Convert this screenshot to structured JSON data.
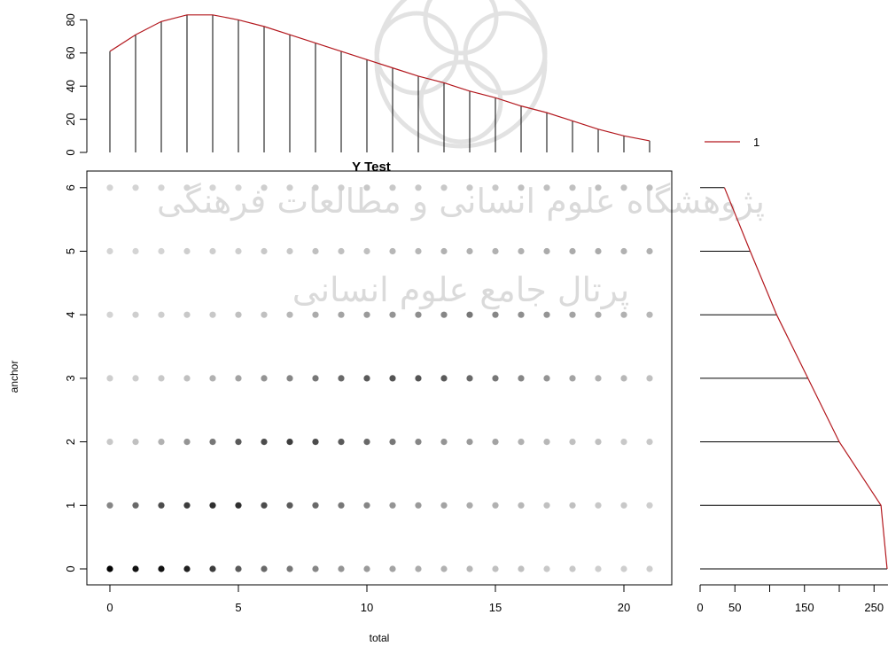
{
  "chart_data": [
    {
      "panel": "joint",
      "type": "scatter",
      "title": "Y Test",
      "xlabel": "total",
      "ylabel": "anchor",
      "xlim": [
        -1,
        22
      ],
      "ylim": [
        -0.2,
        6.2
      ],
      "xticks": [
        "0",
        "5",
        "10",
        "15",
        "20"
      ],
      "yticks": [
        "0",
        "1",
        "2",
        "3",
        "4",
        "5",
        "6"
      ],
      "grid": false,
      "point_style": "grey points; darker shade means higher probability",
      "shade_levels": [
        [
          80,
          75,
          75,
          70,
          60,
          50,
          45,
          40,
          35,
          30,
          28,
          25,
          22,
          20,
          18,
          15,
          15,
          12,
          12,
          10,
          10,
          10
        ],
        [
          35,
          45,
          55,
          60,
          65,
          65,
          55,
          50,
          45,
          40,
          35,
          30,
          28,
          25,
          22,
          20,
          18,
          15,
          15,
          12,
          12,
          10
        ],
        [
          12,
          15,
          20,
          30,
          40,
          50,
          55,
          60,
          55,
          50,
          45,
          40,
          35,
          30,
          28,
          25,
          20,
          18,
          15,
          15,
          12,
          12
        ],
        [
          10,
          10,
          12,
          15,
          20,
          25,
          30,
          35,
          40,
          45,
          50,
          52,
          52,
          50,
          45,
          40,
          35,
          30,
          25,
          20,
          18,
          15
        ],
        [
          8,
          10,
          10,
          12,
          12,
          15,
          15,
          18,
          22,
          25,
          28,
          30,
          32,
          35,
          40,
          35,
          32,
          30,
          25,
          22,
          20,
          18
        ],
        [
          8,
          8,
          8,
          10,
          10,
          10,
          12,
          12,
          15,
          15,
          15,
          18,
          18,
          20,
          20,
          20,
          20,
          22,
          22,
          22,
          20,
          20
        ],
        [
          8,
          8,
          8,
          8,
          8,
          8,
          10,
          10,
          10,
          10,
          12,
          12,
          12,
          12,
          12,
          12,
          15,
          15,
          15,
          15,
          15,
          15
        ]
      ]
    },
    {
      "panel": "top-marginal",
      "type": "bar",
      "x": [
        0,
        1,
        2,
        3,
        4,
        5,
        6,
        7,
        8,
        9,
        10,
        11,
        12,
        13,
        14,
        15,
        16,
        17,
        18,
        19,
        20,
        21
      ],
      "values": [
        61,
        71,
        79,
        83,
        83,
        80,
        76,
        71,
        66,
        61,
        56,
        51,
        46,
        42,
        37,
        33,
        28,
        24,
        19,
        14,
        10,
        7
      ],
      "ylim": [
        0,
        85
      ],
      "yticks": [
        "0",
        "20",
        "40",
        "60",
        "80"
      ],
      "overlay_line": "fitted curve through bar tops",
      "line_color": "#b3181e"
    },
    {
      "panel": "right-marginal",
      "type": "bar",
      "orientation": "horizontal",
      "categories": [
        "0",
        "1",
        "2",
        "3",
        "4",
        "5",
        "6"
      ],
      "values": [
        275,
        260,
        200,
        155,
        110,
        72,
        35
      ],
      "xlim": [
        0,
        270
      ],
      "xticks": [
        "0",
        "50",
        "150",
        "250"
      ],
      "overlay_line": "fitted curve through bar ends",
      "line_color": "#b3181e"
    }
  ],
  "legend": {
    "label": "1",
    "color": "#b3181e",
    "placement": "top-right"
  },
  "watermark": {
    "line1": "پژوهشگاه علوم انسانی و مطالعات فرهنگی",
    "line2": "پرتال جامع علوم انسانی"
  }
}
